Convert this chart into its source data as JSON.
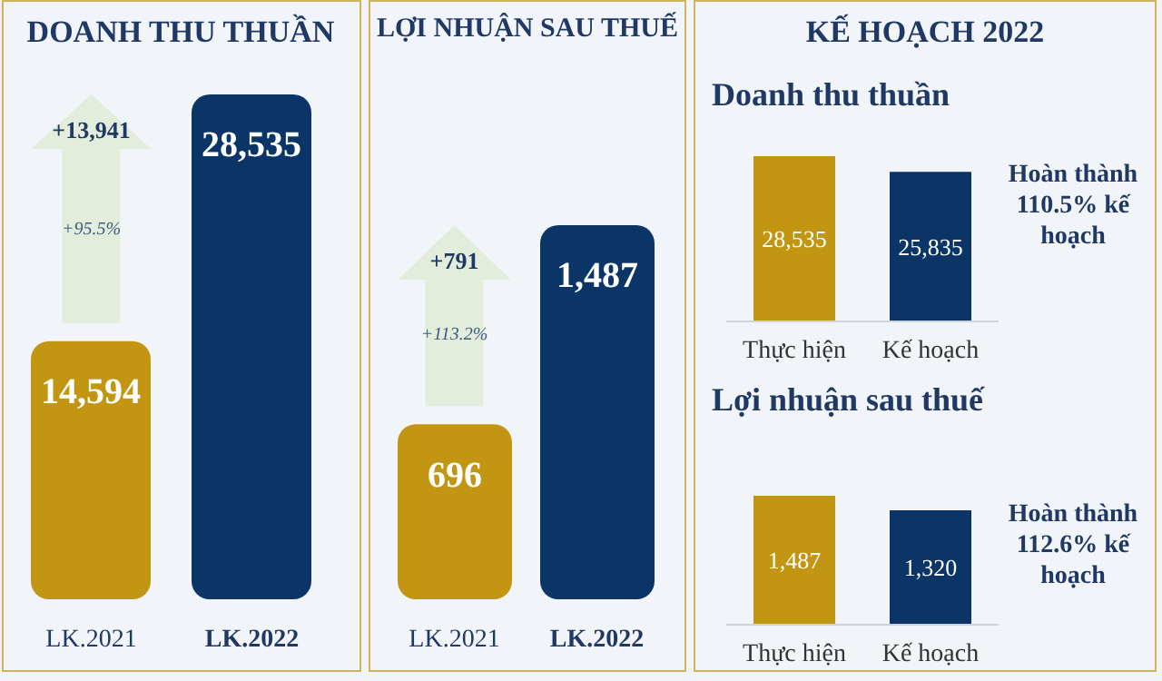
{
  "chart_data": [
    {
      "type": "bar",
      "title": "DOANH THU THUẦN",
      "categories": [
        "LK.2021",
        "LK.2022"
      ],
      "values": [
        14594,
        28535
      ],
      "colors": [
        "#c29612",
        "#0b3566"
      ],
      "value_labels": [
        "14,594",
        "28,535"
      ],
      "annotations": [
        "+13,941",
        "+95.5%"
      ]
    },
    {
      "type": "bar",
      "title": "LỢI NHUẬN SAU THUẾ",
      "categories": [
        "LK.2021",
        "LK.2022"
      ],
      "values": [
        696,
        1487
      ],
      "colors": [
        "#c29612",
        "#0b3566"
      ],
      "value_labels": [
        "696",
        "1,487"
      ],
      "annotations": [
        "+791",
        "+113.2%"
      ]
    },
    {
      "type": "bar",
      "title": "KẾ HOẠCH 2022",
      "subtitle": "Doanh thu thuần",
      "categories": [
        "Thực hiện",
        "Kế hoạch"
      ],
      "values": [
        28535,
        25835
      ],
      "colors": [
        "#c29612",
        "#0b3566"
      ],
      "value_labels": [
        "28,535",
        "25,835"
      ],
      "annotations": [
        "Hoàn thành 110.5% kế hoạch"
      ]
    },
    {
      "type": "bar",
      "title": "Lợi nhuận sau thuế",
      "categories": [
        "Thực hiện",
        "Kế hoạch"
      ],
      "values": [
        1487,
        1320
      ],
      "colors": [
        "#c29612",
        "#0b3566"
      ],
      "value_labels": [
        "1,487",
        "1,320"
      ],
      "annotations": [
        "Hoàn thành 112.6% kế hoạch"
      ]
    }
  ]
}
